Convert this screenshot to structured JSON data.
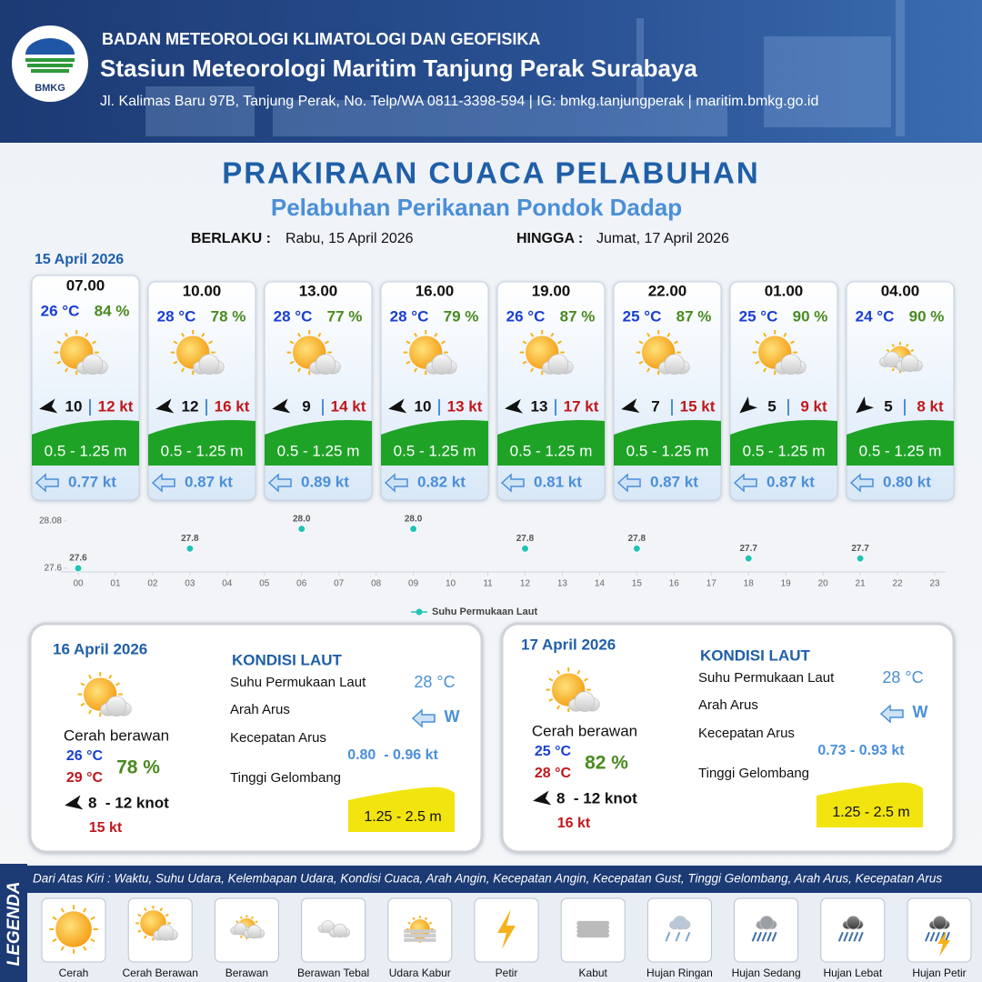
{
  "header": {
    "logo": "BMKG",
    "org": "BADAN METEOROLOGI KLIMATOLOGI DAN GEOFISIKA",
    "station": "Stasiun Meteorologi Maritim Tanjung Perak Surabaya",
    "address": "Jl. Kalimas Baru 97B, Tanjung Perak, No. Telp/WA 0811-3398-594 | IG: bmkg.tanjungperak | maritim.bmkg.go.id"
  },
  "title": "PRAKIRAAN CUACA PELABUHAN",
  "subtitle": "Pelabuhan Perikanan Pondok Dadap",
  "validity": {
    "from_label": "BERLAKU :",
    "from": "Rabu, 15 April 2026",
    "to_label": "HINGGA :",
    "to": "Jumat, 17 April 2026"
  },
  "day1": {
    "date": "15 April 2026",
    "cards": [
      {
        "time": "07.00",
        "temp": "26 °C",
        "humidity": "84 %",
        "wind": "10",
        "gust": "12 kt",
        "wave": "0.5 - 1.25 m",
        "current": "0.77 kt"
      },
      {
        "time": "10.00",
        "temp": "28 °C",
        "humidity": "78 %",
        "wind": "12",
        "gust": "16 kt",
        "wave": "0.5 - 1.25 m",
        "current": "0.87 kt"
      },
      {
        "time": "13.00",
        "temp": "28 °C",
        "humidity": "77 %",
        "wind": "9",
        "gust": "14 kt",
        "wave": "0.5 - 1.25 m",
        "current": "0.89 kt"
      },
      {
        "time": "16.00",
        "temp": "28 °C",
        "humidity": "79 %",
        "wind": "10",
        "gust": "13 kt",
        "wave": "0.5 - 1.25 m",
        "current": "0.82 kt"
      },
      {
        "time": "19.00",
        "temp": "26 °C",
        "humidity": "87 %",
        "wind": "13",
        "gust": "17 kt",
        "wave": "0.5 - 1.25 m",
        "current": "0.81 kt"
      },
      {
        "time": "22.00",
        "temp": "25 °C",
        "humidity": "87 %",
        "wind": "7",
        "gust": "15 kt",
        "wave": "0.5 - 1.25 m",
        "current": "0.87 kt"
      },
      {
        "time": "01.00",
        "temp": "25 °C",
        "humidity": "90 %",
        "wind": "5",
        "gust": "9 kt",
        "wave": "0.5 - 1.25 m",
        "current": "0.87 kt"
      },
      {
        "time": "04.00",
        "temp": "24 °C",
        "humidity": "90 %",
        "wind": "5",
        "gust": "8 kt",
        "wave": "0.5 - 1.25 m",
        "current": "0.80 kt"
      }
    ]
  },
  "chart_data": {
    "type": "line",
    "color": "#22c3b5",
    "categories": [
      "00",
      "01",
      "02",
      "03",
      "04",
      "05",
      "06",
      "07",
      "08",
      "09",
      "10",
      "11",
      "12",
      "13",
      "14",
      "15",
      "16",
      "17",
      "18",
      "19",
      "20",
      "21",
      "22",
      "23"
    ],
    "series": [
      {
        "name": "Suhu Permukaan Laut",
        "color": "#22c3b5",
        "values": [
          27.6,
          null,
          null,
          27.8,
          null,
          null,
          28.0,
          null,
          null,
          28.0,
          null,
          null,
          27.8,
          null,
          null,
          27.8,
          null,
          null,
          27.7,
          null,
          null,
          27.7,
          null,
          null
        ],
        "value_labels": [
          "27.6",
          null,
          null,
          "27.8",
          null,
          null,
          "28.0",
          null,
          null,
          "28.0",
          null,
          null,
          "27.8",
          null,
          null,
          "27.8",
          null,
          null,
          "27.7",
          null,
          null,
          "27.7",
          null,
          null
        ]
      }
    ],
    "ylim": [
      27.6,
      28.08
    ],
    "yticks": [
      27.6,
      28.08
    ]
  },
  "days": [
    {
      "date": "16 April 2026",
      "condition": "Cerah berawan",
      "temp_min": "26 °C",
      "temp_max": "29 °C",
      "humidity": "78 %",
      "wind": "8  - 12 knot",
      "gust": "15 kt",
      "sea_title": "KONDISI LAUT",
      "sst_label": "Suhu Permukaan Laut",
      "sst": "28 °C",
      "dir_label": "Arah Arus",
      "dir": "W",
      "speed_label": "Kecepatan Arus",
      "speed": "0.80  - 0.96 kt",
      "wave_label": "Tinggi Gelombang",
      "wave": "1.25 - 2.5 m"
    },
    {
      "date": "17 April 2026",
      "condition": "Cerah berawan",
      "temp_min": "25 °C",
      "temp_max": "28 °C",
      "humidity": "82 %",
      "wind": "8  - 12 knot",
      "gust": "16 kt",
      "sea_title": "KONDISI LAUT",
      "sst_label": "Suhu Permukaan Laut",
      "sst": "28 °C",
      "dir_label": "Arah Arus",
      "dir": "W",
      "speed_label": "Kecepatan Arus",
      "speed": "0.73 - 0.93 kt",
      "wave_label": "Tinggi Gelombang",
      "wave": "1.25 - 2.5 m"
    }
  ],
  "legend": {
    "title": "LEGENDA",
    "description": "Dari Atas Kiri : Waktu, Suhu Udara, Kelembapan Udara, Kondisi Cuaca, Arah Angin, Kecepatan Angin, Kecepatan Gust, Tinggi Gelombang, Arah Arus, Kecepatan Arus",
    "items": [
      "Cerah",
      "Cerah Berawan",
      "Berawan",
      "Berawan Tebal",
      "Udara Kabur",
      "Petir",
      "Kabut",
      "Hujan Ringan",
      "Hujan Sedang",
      "Hujan Lebat",
      "Hujan Petir"
    ]
  }
}
